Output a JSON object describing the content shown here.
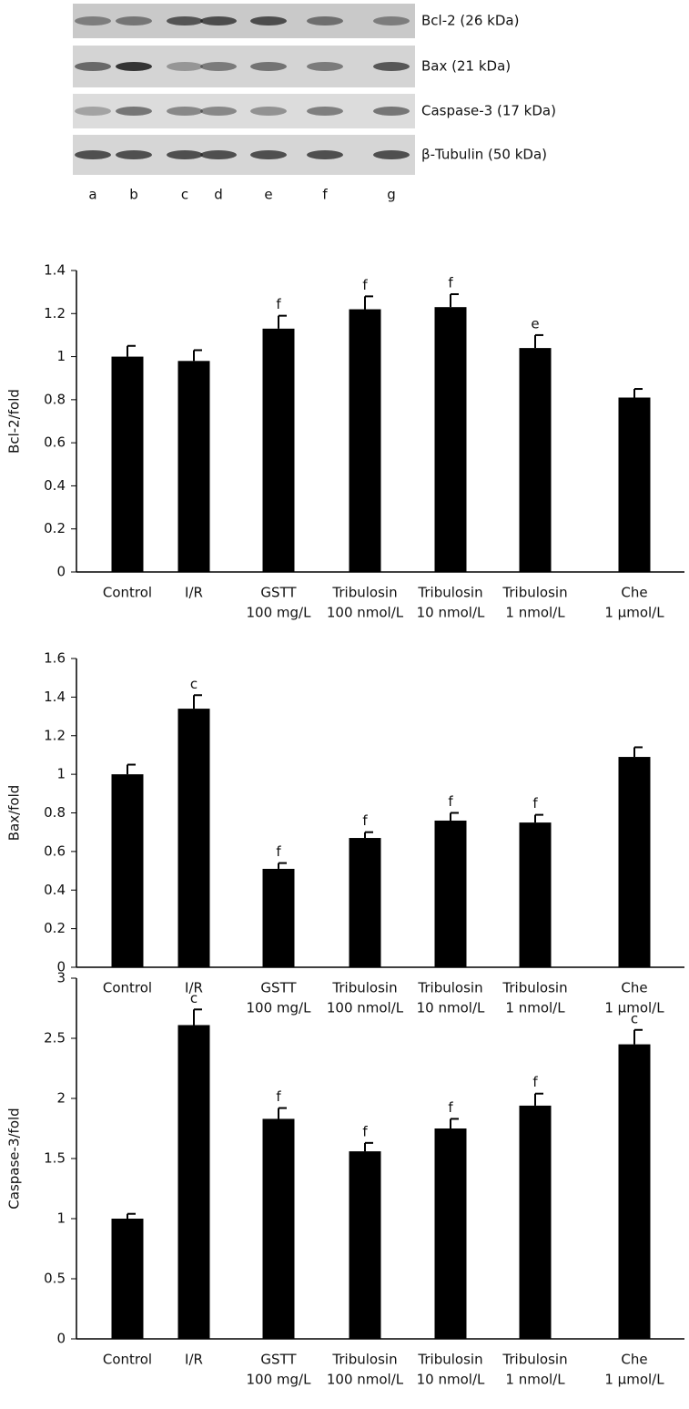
{
  "blot": {
    "bands": [
      "Bcl-2 (26 kDa)",
      "Bax (21 kDa)",
      "Caspase-3 (17 kDa)",
      "β-Tubulin (50 kDa)"
    ],
    "lanes": [
      "a",
      "b",
      "c",
      "d",
      "e",
      "f",
      "g"
    ]
  },
  "chart_data": [
    {
      "type": "bar",
      "y_label": "Bcl-2/fold",
      "categories": [
        [
          "Control"
        ],
        [
          "I/R"
        ],
        [
          "GSTT",
          "100 mg/L"
        ],
        [
          "Tribulosin",
          "100 nmol/L"
        ],
        [
          "Tribulosin",
          "10 nmol/L"
        ],
        [
          "Tribulosin",
          "1 nmol/L"
        ],
        [
          "Che",
          "1 μmol/L"
        ]
      ],
      "values": [
        1.0,
        0.98,
        1.13,
        1.22,
        1.23,
        1.04,
        0.81
      ],
      "errors": [
        0.05,
        0.05,
        0.06,
        0.06,
        0.06,
        0.06,
        0.04
      ],
      "annotations": [
        null,
        null,
        "f",
        "f",
        "f",
        "e",
        null
      ],
      "color": "#000000",
      "ylim": [
        0,
        1.4
      ],
      "yticks": [
        0,
        0.2,
        0.4,
        0.6,
        0.8,
        1,
        1.2,
        1.4
      ]
    },
    {
      "type": "bar",
      "y_label": "Bax/fold",
      "categories": [
        [
          "Control"
        ],
        [
          "I/R"
        ],
        [
          "GSTT",
          "100 mg/L"
        ],
        [
          "Tribulosin",
          "100 nmol/L"
        ],
        [
          "Tribulosin",
          "10 nmol/L"
        ],
        [
          "Tribulosin",
          "1 nmol/L"
        ],
        [
          "Che",
          "1 μmol/L"
        ]
      ],
      "values": [
        1.0,
        1.34,
        0.51,
        0.67,
        0.76,
        0.75,
        1.09
      ],
      "errors": [
        0.05,
        0.07,
        0.03,
        0.03,
        0.04,
        0.04,
        0.05
      ],
      "annotations": [
        null,
        "c",
        "f",
        "f",
        "f",
        "f",
        null
      ],
      "color": "#000000",
      "ylim": [
        0,
        1.6
      ],
      "yticks": [
        0,
        0.2,
        0.4,
        0.6,
        0.8,
        1,
        1.2,
        1.4,
        1.6
      ]
    },
    {
      "type": "bar",
      "y_label": "Caspase-3/fold",
      "categories": [
        [
          "Control"
        ],
        [
          "I/R"
        ],
        [
          "GSTT",
          "100 mg/L"
        ],
        [
          "Tribulosin",
          "100 nmol/L"
        ],
        [
          "Tribulosin",
          "10 nmol/L"
        ],
        [
          "Tribulosin",
          "1 nmol/L"
        ],
        [
          "Che",
          "1 μmol/L"
        ]
      ],
      "values": [
        1.0,
        2.61,
        1.83,
        1.56,
        1.75,
        1.94,
        2.45
      ],
      "errors": [
        0.04,
        0.13,
        0.09,
        0.07,
        0.08,
        0.1,
        0.12
      ],
      "annotations": [
        null,
        "c",
        "f",
        "f",
        "f",
        "f",
        "c"
      ],
      "color": "#000000",
      "ylim": [
        0,
        3
      ],
      "yticks": [
        0,
        0.5,
        1,
        1.5,
        2,
        2.5,
        3
      ]
    }
  ]
}
